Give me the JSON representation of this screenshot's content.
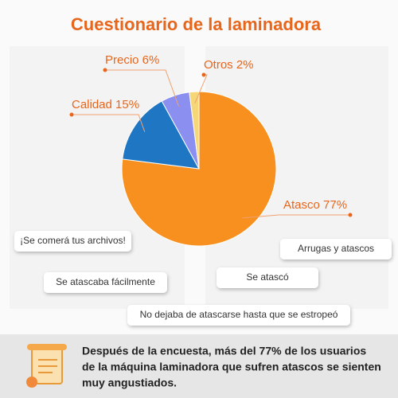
{
  "chart_data": {
    "type": "pie",
    "title": "Cuestionario de la laminadora",
    "values": [
      77,
      15,
      6,
      2
    ],
    "value_labels": [
      "Atasco 77%",
      "Calidad 15%",
      "Precio 6%",
      "Otros 2%"
    ],
    "colors": [
      "#f7901e",
      "#1f77c4",
      "#8b8ff0",
      "#f5d778"
    ],
    "start_angle": 0,
    "direction": "clockwise"
  },
  "bubbles": [
    "¡Se comerá tus archivos!",
    "Arrugas y atascos",
    "Se atascaba fácilmente",
    "Se atascó",
    "No dejaba de atascarse hasta que se estropeó"
  ],
  "footer": {
    "lines": [
      "Después de la encuesta, más del 77% de los usuarios",
      "de la máquina laminadora que sufren atascos se sienten",
      "muy angustiados."
    ]
  }
}
